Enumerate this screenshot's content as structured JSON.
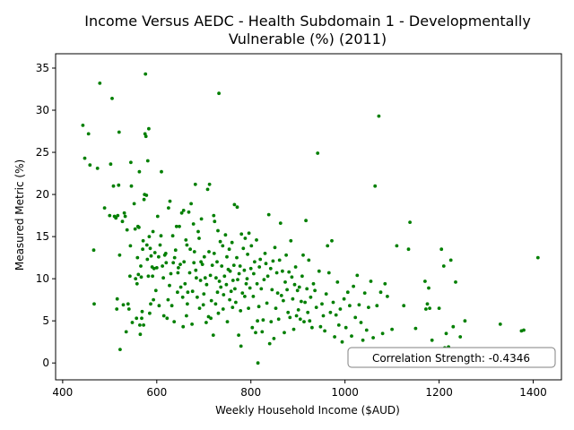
{
  "chart_data": {
    "type": "scatter",
    "title_lines": [
      "Income Versus AEDC - Health Subdomain 1 - Developmentally",
      "Vulnerable (%) (2011)"
    ],
    "xlabel": "Weekly Household Income ($AUD)",
    "ylabel": "Measured Metric (%)",
    "xlim": [
      385,
      1460
    ],
    "ylim": [
      -2,
      36.7
    ],
    "xticks": [
      400,
      600,
      800,
      1000,
      1200,
      1400
    ],
    "yticks": [
      0,
      5,
      10,
      15,
      20,
      25,
      30,
      35
    ],
    "point_color": "#007f00",
    "grid": false,
    "annotation": "Correlation Strength: -0.4346",
    "points": [
      [
        443,
        28.2
      ],
      [
        447,
        24.3
      ],
      [
        455,
        27.2
      ],
      [
        458,
        23.5
      ],
      [
        466,
        13.4
      ],
      [
        467,
        7.0
      ],
      [
        474,
        23.1
      ],
      [
        479,
        33.2
      ],
      [
        489,
        18.4
      ],
      [
        500,
        17.5
      ],
      [
        502,
        23.6
      ],
      [
        505,
        31.4
      ],
      [
        508,
        21.0
      ],
      [
        510,
        17.4
      ],
      [
        513,
        17.2
      ],
      [
        515,
        6.4
      ],
      [
        516,
        7.6
      ],
      [
        517,
        17.5
      ],
      [
        519,
        21.1
      ],
      [
        520,
        27.4
      ],
      [
        521,
        12.8
      ],
      [
        522,
        1.6
      ],
      [
        527,
        16.8
      ],
      [
        529,
        6.9
      ],
      [
        531,
        17.8
      ],
      [
        533,
        17.4
      ],
      [
        535,
        3.7
      ],
      [
        537,
        15.8
      ],
      [
        539,
        7.0
      ],
      [
        541,
        6.4
      ],
      [
        543,
        10.3
      ],
      [
        544,
        13.9
      ],
      [
        545,
        23.8
      ],
      [
        546,
        21.0
      ],
      [
        548,
        4.8
      ],
      [
        552,
        18.9
      ],
      [
        554,
        15.9
      ],
      [
        555,
        10.0
      ],
      [
        557,
        5.3
      ],
      [
        558,
        9.4
      ],
      [
        559,
        12.5
      ],
      [
        560,
        16.2
      ],
      [
        561,
        10.5
      ],
      [
        562,
        16.1
      ],
      [
        563,
        22.7
      ],
      [
        564,
        4.5
      ],
      [
        565,
        3.4
      ],
      [
        566,
        11.5
      ],
      [
        567,
        10.2
      ],
      [
        568,
        5.3
      ],
      [
        569,
        6.1
      ],
      [
        570,
        13.5
      ],
      [
        571,
        14.5
      ],
      [
        572,
        4.5
      ],
      [
        573,
        19.4
      ],
      [
        574,
        20.0
      ],
      [
        575,
        27.2
      ],
      [
        576,
        34.3
      ],
      [
        577,
        26.9
      ],
      [
        578,
        19.9
      ],
      [
        579,
        14.0
      ],
      [
        580,
        12.3
      ],
      [
        581,
        24.0
      ],
      [
        582,
        10.3
      ],
      [
        583,
        27.8
      ],
      [
        584,
        15.0
      ],
      [
        585,
        5.9
      ],
      [
        586,
        13.6
      ],
      [
        587,
        7.0
      ],
      [
        588,
        12.7
      ],
      [
        590,
        11.4
      ],
      [
        591,
        10.3
      ],
      [
        592,
        15.6
      ],
      [
        593,
        7.5
      ],
      [
        594,
        11.2
      ],
      [
        596,
        13.1
      ],
      [
        598,
        8.6
      ],
      [
        600,
        11.3
      ],
      [
        602,
        17.4
      ],
      [
        604,
        12.6
      ],
      [
        605,
        6.8
      ],
      [
        607,
        14.0
      ],
      [
        609,
        15.1
      ],
      [
        610,
        22.7
      ],
      [
        612,
        11.5
      ],
      [
        614,
        10.1
      ],
      [
        615,
        5.6
      ],
      [
        617,
        12.8
      ],
      [
        619,
        13.0
      ],
      [
        620,
        11.9
      ],
      [
        622,
        5.3
      ],
      [
        624,
        7.5
      ],
      [
        625,
        18.4
      ],
      [
        627,
        9.2
      ],
      [
        628,
        19.2
      ],
      [
        630,
        10.6
      ],
      [
        632,
        6.8
      ],
      [
        634,
        15.1
      ],
      [
        635,
        11.9
      ],
      [
        637,
        4.9
      ],
      [
        638,
        12.5
      ],
      [
        640,
        13.4
      ],
      [
        642,
        16.2
      ],
      [
        644,
        8.4
      ],
      [
        645,
        10.7
      ],
      [
        646,
        11.3
      ],
      [
        648,
        16.2
      ],
      [
        650,
        11.7
      ],
      [
        651,
        9.0
      ],
      [
        653,
        17.8
      ],
      [
        655,
        7.8
      ],
      [
        656,
        4.3
      ],
      [
        657,
        18.1
      ],
      [
        658,
        12.0
      ],
      [
        660,
        9.4
      ],
      [
        662,
        14.6
      ],
      [
        663,
        5.6
      ],
      [
        664,
        14.0
      ],
      [
        665,
        7.0
      ],
      [
        666,
        8.4
      ],
      [
        668,
        17.9
      ],
      [
        670,
        10.7
      ],
      [
        671,
        13.5
      ],
      [
        673,
        18.9
      ],
      [
        675,
        4.6
      ],
      [
        676,
        8.5
      ],
      [
        678,
        16.5
      ],
      [
        679,
        11.9
      ],
      [
        680,
        13.2
      ],
      [
        682,
        21.2
      ],
      [
        683,
        11.0
      ],
      [
        684,
        10.1
      ],
      [
        686,
        7.8
      ],
      [
        688,
        15.6
      ],
      [
        690,
        14.8
      ],
      [
        691,
        6.5
      ],
      [
        693,
        9.8
      ],
      [
        694,
        12.0
      ],
      [
        695,
        17.1
      ],
      [
        697,
        11.7
      ],
      [
        699,
        6.9
      ],
      [
        700,
        8.2
      ],
      [
        701,
        12.6
      ],
      [
        703,
        10.1
      ],
      [
        705,
        4.8
      ],
      [
        706,
        9.3
      ],
      [
        708,
        20.6
      ],
      [
        710,
        5.5
      ],
      [
        711,
        13.2
      ],
      [
        712,
        21.2
      ],
      [
        714,
        10.4
      ],
      [
        715,
        5.3
      ],
      [
        716,
        7.4
      ],
      [
        718,
        11.6
      ],
      [
        720,
        3.3
      ],
      [
        721,
        17.5
      ],
      [
        722,
        13.0
      ],
      [
        723,
        16.8
      ],
      [
        725,
        7.0
      ],
      [
        726,
        10.1
      ],
      [
        728,
        12.0
      ],
      [
        729,
        8.4
      ],
      [
        730,
        15.7
      ],
      [
        731,
        5.9
      ],
      [
        732,
        32.0
      ],
      [
        733,
        9.7
      ],
      [
        735,
        14.4
      ],
      [
        736,
        9.0
      ],
      [
        738,
        11.5
      ],
      [
        740,
        13.9
      ],
      [
        741,
        6.4
      ],
      [
        742,
        8.1
      ],
      [
        744,
        10.3
      ],
      [
        746,
        15.2
      ],
      [
        748,
        9.3
      ],
      [
        749,
        12.6
      ],
      [
        750,
        4.9
      ],
      [
        752,
        11.1
      ],
      [
        754,
        13.5
      ],
      [
        755,
        7.5
      ],
      [
        756,
        10.9
      ],
      [
        758,
        8.5
      ],
      [
        760,
        14.3
      ],
      [
        761,
        6.6
      ],
      [
        762,
        9.8
      ],
      [
        764,
        11.6
      ],
      [
        765,
        18.8
      ],
      [
        766,
        8.8
      ],
      [
        768,
        7.2
      ],
      [
        770,
        12.5
      ],
      [
        771,
        18.5
      ],
      [
        772,
        9.9
      ],
      [
        774,
        3.3
      ],
      [
        775,
        10.6
      ],
      [
        777,
        11.5
      ],
      [
        778,
        6.2
      ],
      [
        779,
        2.0
      ],
      [
        780,
        15.3
      ],
      [
        782,
        8.3
      ],
      [
        784,
        13.6
      ],
      [
        786,
        11.0
      ],
      [
        787,
        7.9
      ],
      [
        788,
        14.8
      ],
      [
        790,
        9.4
      ],
      [
        792,
        10.0
      ],
      [
        793,
        12.9
      ],
      [
        795,
        6.5
      ],
      [
        796,
        15.4
      ],
      [
        798,
        8.9
      ],
      [
        800,
        11.2
      ],
      [
        801,
        13.9
      ],
      [
        803,
        4.2
      ],
      [
        805,
        7.9
      ],
      [
        806,
        10.6
      ],
      [
        808,
        12.0
      ],
      [
        810,
        3.6
      ],
      [
        812,
        14.6
      ],
      [
        813,
        9.4
      ],
      [
        814,
        5.0
      ],
      [
        815,
        0.0
      ],
      [
        817,
        6.7
      ],
      [
        818,
        11.4
      ],
      [
        820,
        12.3
      ],
      [
        822,
        8.8
      ],
      [
        824,
        3.7
      ],
      [
        826,
        5.1
      ],
      [
        828,
        9.9
      ],
      [
        830,
        13.0
      ],
      [
        832,
        11.8
      ],
      [
        834,
        7.1
      ],
      [
        836,
        10.3
      ],
      [
        838,
        17.6
      ],
      [
        840,
        2.3
      ],
      [
        842,
        11.2
      ],
      [
        843,
        4.9
      ],
      [
        845,
        8.7
      ],
      [
        847,
        12.1
      ],
      [
        849,
        2.9
      ],
      [
        851,
        13.7
      ],
      [
        853,
        6.5
      ],
      [
        855,
        10.7
      ],
      [
        857,
        8.3
      ],
      [
        859,
        5.2
      ],
      [
        861,
        12.2
      ],
      [
        863,
        16.6
      ],
      [
        865,
        8.0
      ],
      [
        867,
        10.9
      ],
      [
        869,
        7.4
      ],
      [
        871,
        3.6
      ],
      [
        873,
        9.6
      ],
      [
        875,
        12.8
      ],
      [
        877,
        8.7
      ],
      [
        879,
        6.0
      ],
      [
        881,
        10.8
      ],
      [
        883,
        5.4
      ],
      [
        885,
        14.5
      ],
      [
        887,
        10.2
      ],
      [
        889,
        7.6
      ],
      [
        891,
        4.0
      ],
      [
        893,
        9.3
      ],
      [
        895,
        11.4
      ],
      [
        897,
        5.6
      ],
      [
        899,
        8.6
      ],
      [
        901,
        6.3
      ],
      [
        903,
        9.0
      ],
      [
        905,
        5.2
      ],
      [
        907,
        7.3
      ],
      [
        909,
        10.3
      ],
      [
        911,
        12.8
      ],
      [
        913,
        4.9
      ],
      [
        915,
        7.2
      ],
      [
        917,
        16.9
      ],
      [
        919,
        8.8
      ],
      [
        921,
        6.0
      ],
      [
        923,
        12.2
      ],
      [
        925,
        5.0
      ],
      [
        927,
        7.8
      ],
      [
        930,
        4.2
      ],
      [
        933,
        9.4
      ],
      [
        936,
        8.6
      ],
      [
        939,
        6.6
      ],
      [
        942,
        24.9
      ],
      [
        945,
        10.9
      ],
      [
        948,
        4.3
      ],
      [
        951,
        7.0
      ],
      [
        954,
        5.6
      ],
      [
        957,
        3.8
      ],
      [
        960,
        8.2
      ],
      [
        963,
        13.9
      ],
      [
        966,
        10.7
      ],
      [
        969,
        6.0
      ],
      [
        972,
        14.5
      ],
      [
        975,
        7.2
      ],
      [
        978,
        3.1
      ],
      [
        981,
        5.7
      ],
      [
        984,
        9.6
      ],
      [
        987,
        4.5
      ],
      [
        990,
        6.4
      ],
      [
        994,
        2.5
      ],
      [
        998,
        7.6
      ],
      [
        1002,
        4.2
      ],
      [
        1006,
        8.4
      ],
      [
        1010,
        6.8
      ],
      [
        1014,
        3.2
      ],
      [
        1018,
        9.1
      ],
      [
        1022,
        5.4
      ],
      [
        1026,
        10.4
      ],
      [
        1030,
        6.9
      ],
      [
        1034,
        4.8
      ],
      [
        1038,
        2.7
      ],
      [
        1042,
        8.3
      ],
      [
        1046,
        3.9
      ],
      [
        1050,
        6.6
      ],
      [
        1055,
        9.7
      ],
      [
        1060,
        3.0
      ],
      [
        1064,
        21.0
      ],
      [
        1068,
        6.8
      ],
      [
        1072,
        29.3
      ],
      [
        1076,
        8.4
      ],
      [
        1080,
        3.5
      ],
      [
        1085,
        9.4
      ],
      [
        1090,
        7.9
      ],
      [
        1100,
        4.0
      ],
      [
        1110,
        13.9
      ],
      [
        1125,
        6.8
      ],
      [
        1135,
        13.5
      ],
      [
        1138,
        16.7
      ],
      [
        1150,
        4.1
      ],
      [
        1170,
        9.7
      ],
      [
        1172,
        6.4
      ],
      [
        1175,
        7.0
      ],
      [
        1178,
        8.9
      ],
      [
        1180,
        6.5
      ],
      [
        1185,
        2.7
      ],
      [
        1200,
        6.5
      ],
      [
        1205,
        13.5
      ],
      [
        1210,
        11.5
      ],
      [
        1212,
        1.8
      ],
      [
        1215,
        3.5
      ],
      [
        1220,
        1.9
      ],
      [
        1225,
        12.2
      ],
      [
        1230,
        4.3
      ],
      [
        1235,
        9.6
      ],
      [
        1245,
        3.1
      ],
      [
        1255,
        5.0
      ],
      [
        1330,
        4.6
      ],
      [
        1340,
        1.5
      ],
      [
        1375,
        3.8
      ],
      [
        1380,
        3.9
      ],
      [
        1410,
        12.5
      ]
    ]
  }
}
